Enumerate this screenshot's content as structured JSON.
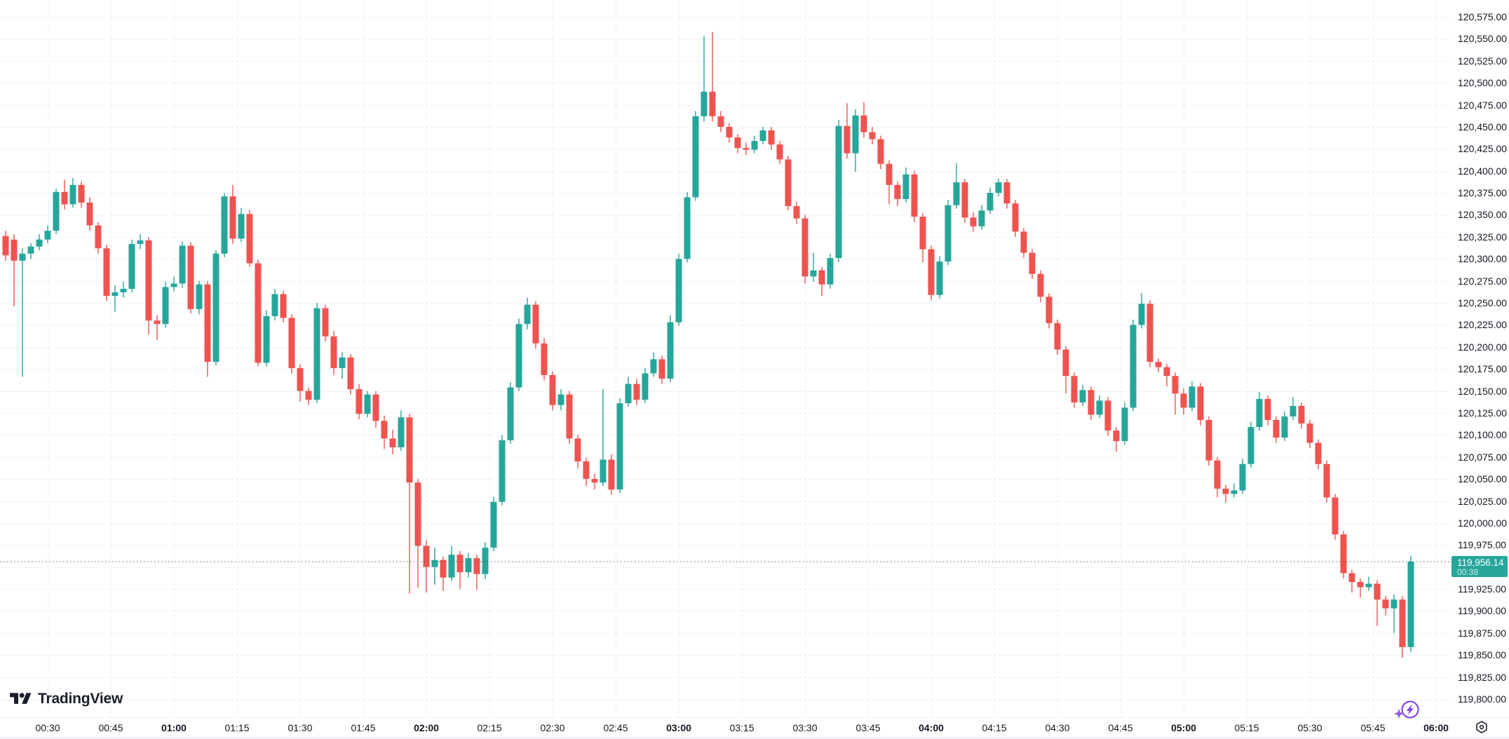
{
  "watermark": {
    "brand": "TradingView"
  },
  "chart_data": {
    "type": "candlestick",
    "title": "",
    "interval_minutes": 2,
    "first_candle_time": "00:20",
    "legend_position": "none",
    "grid": true,
    "last_price": 119956.14,
    "last_price_label": "119,956.14",
    "countdown": "00:38",
    "price_line": {
      "price": 119956.14,
      "style": "dotted"
    },
    "colors": {
      "up": "#26a69a",
      "down": "#ef5350",
      "grid": "#f0f3fa",
      "text": "#131722",
      "price_line": "#4f5966",
      "badge_text": "#ffffff",
      "logo": "#1a1e29",
      "boost_purple": "#7c3aed",
      "sparkle_purple": "#8b5cf6",
      "gear": "#2a2e39"
    },
    "y_axis": {
      "min": 119800,
      "max": 120575,
      "step": 25,
      "labels": [
        "120,575.00",
        "120,550.00",
        "120,525.00",
        "120,500.00",
        "120,475.00",
        "120,450.00",
        "120,425.00",
        "120,400.00",
        "120,375.00",
        "120,350.00",
        "120,325.00",
        "120,300.00",
        "120,275.00",
        "120,250.00",
        "120,225.00",
        "120,200.00",
        "120,175.00",
        "120,150.00",
        "120,125.00",
        "120,100.00",
        "120,075.00",
        "120,050.00",
        "120,025.00",
        "120,000.00",
        "119,975.00",
        "119,950.00",
        "119,925.00",
        "119,900.00",
        "119,875.00",
        "119,850.00",
        "119,825.00",
        "119,800.00"
      ]
    },
    "x_axis": {
      "ticks": [
        {
          "label": "00:30",
          "minutes": 30,
          "bold": false
        },
        {
          "label": "00:45",
          "minutes": 45,
          "bold": false
        },
        {
          "label": "01:00",
          "minutes": 60,
          "bold": true
        },
        {
          "label": "01:15",
          "minutes": 75,
          "bold": false
        },
        {
          "label": "01:30",
          "minutes": 90,
          "bold": false
        },
        {
          "label": "01:45",
          "minutes": 105,
          "bold": false
        },
        {
          "label": "02:00",
          "minutes": 120,
          "bold": true
        },
        {
          "label": "02:15",
          "minutes": 135,
          "bold": false
        },
        {
          "label": "02:30",
          "minutes": 150,
          "bold": false
        },
        {
          "label": "02:45",
          "minutes": 165,
          "bold": false
        },
        {
          "label": "03:00",
          "minutes": 180,
          "bold": true
        },
        {
          "label": "03:15",
          "minutes": 195,
          "bold": false
        },
        {
          "label": "03:30",
          "minutes": 210,
          "bold": false
        },
        {
          "label": "03:45",
          "minutes": 225,
          "bold": false
        },
        {
          "label": "04:00",
          "minutes": 240,
          "bold": true
        },
        {
          "label": "04:15",
          "minutes": 255,
          "bold": false
        },
        {
          "label": "04:30",
          "minutes": 270,
          "bold": false
        },
        {
          "label": "04:45",
          "minutes": 285,
          "bold": false
        },
        {
          "label": "05:00",
          "minutes": 300,
          "bold": true
        },
        {
          "label": "05:15",
          "minutes": 315,
          "bold": false
        },
        {
          "label": "05:30",
          "minutes": 330,
          "bold": false
        },
        {
          "label": "05:45",
          "minutes": 345,
          "bold": false
        },
        {
          "label": "06:00",
          "minutes": 360,
          "bold": true
        }
      ]
    },
    "candles": [
      [
        120326,
        120332,
        120298,
        120304
      ],
      [
        120322,
        120328,
        120246,
        120298
      ],
      [
        120298,
        120312,
        120166,
        120306
      ],
      [
        120306,
        120318,
        120300,
        120314
      ],
      [
        120314,
        120328,
        120310,
        120322
      ],
      [
        120322,
        120338,
        120318,
        120332
      ],
      [
        120332,
        120380,
        120328,
        120376
      ],
      [
        120376,
        120390,
        120356,
        120362
      ],
      [
        120362,
        120392,
        120358,
        120384
      ],
      [
        120384,
        120388,
        120358,
        120364
      ],
      [
        120364,
        120370,
        120332,
        120338
      ],
      [
        120338,
        120342,
        120306,
        120312
      ],
      [
        120312,
        120316,
        120252,
        120258
      ],
      [
        120258,
        120270,
        120240,
        120262
      ],
      [
        120262,
        120274,
        120256,
        120266
      ],
      [
        120266,
        120322,
        120262,
        120317
      ],
      [
        120317,
        120328,
        120311,
        120321
      ],
      [
        120321,
        120325,
        120214,
        120230
      ],
      [
        120230,
        120236,
        120208,
        120226
      ],
      [
        120226,
        120274,
        120222,
        120268
      ],
      [
        120268,
        120280,
        120263,
        120272
      ],
      [
        120272,
        120320,
        120267,
        120315
      ],
      [
        120315,
        120319,
        120238,
        120243
      ],
      [
        120243,
        120275,
        120237,
        120271
      ],
      [
        120271,
        120275,
        120166,
        120183
      ],
      [
        120183,
        120310,
        120179,
        120306
      ],
      [
        120306,
        120375,
        120302,
        120371
      ],
      [
        120371,
        120384,
        120317,
        120323
      ],
      [
        120323,
        120358,
        120319,
        120351
      ],
      [
        120351,
        120356,
        120291,
        120295
      ],
      [
        120295,
        120299,
        120178,
        120182
      ],
      [
        120182,
        120242,
        120178,
        120235
      ],
      [
        120235,
        120266,
        120230,
        120260
      ],
      [
        120260,
        120264,
        120228,
        120233
      ],
      [
        120233,
        120237,
        120170,
        120176
      ],
      [
        120176,
        120180,
        120138,
        120150
      ],
      [
        120150,
        120154,
        120134,
        120140
      ],
      [
        120140,
        120250,
        120136,
        120244
      ],
      [
        120244,
        120248,
        120206,
        120212
      ],
      [
        120212,
        120218,
        120168,
        120176
      ],
      [
        120176,
        120194,
        120164,
        120188
      ],
      [
        120188,
        120192,
        120146,
        120152
      ],
      [
        120152,
        120158,
        120118,
        120124
      ],
      [
        120124,
        120150,
        120120,
        120146
      ],
      [
        120146,
        120150,
        120108,
        120116
      ],
      [
        120116,
        120122,
        120084,
        120096
      ],
      [
        120096,
        120106,
        120078,
        120086
      ],
      [
        120086,
        120128,
        120082,
        120120
      ],
      [
        120120,
        120124,
        119920,
        120046
      ],
      [
        120046,
        120050,
        119926,
        119974
      ],
      [
        119974,
        119980,
        119921,
        119950
      ],
      [
        119950,
        119972,
        119930,
        119958
      ],
      [
        119958,
        119962,
        119923,
        119938
      ],
      [
        119938,
        119974,
        119934,
        119964
      ],
      [
        119964,
        119968,
        119925,
        119944
      ],
      [
        119944,
        119966,
        119938,
        119960
      ],
      [
        119960,
        119964,
        119924,
        119942
      ],
      [
        119942,
        119978,
        119936,
        119972
      ],
      [
        119972,
        120030,
        119968,
        120024
      ],
      [
        120024,
        120100,
        120020,
        120094
      ],
      [
        120094,
        120160,
        120090,
        120154
      ],
      [
        120154,
        120232,
        120150,
        120226
      ],
      [
        120226,
        120256,
        120220,
        120248
      ],
      [
        120248,
        120252,
        120198,
        120204
      ],
      [
        120204,
        120210,
        120162,
        120168
      ],
      [
        120168,
        120172,
        120128,
        120134
      ],
      [
        120134,
        120152,
        120128,
        120146
      ],
      [
        120146,
        120150,
        120090,
        120096
      ],
      [
        120096,
        120100,
        120062,
        120070
      ],
      [
        120070,
        120074,
        120042,
        120050
      ],
      [
        120050,
        120056,
        120038,
        120046
      ],
      [
        120046,
        120152,
        120042,
        120072
      ],
      [
        120072,
        120078,
        120032,
        120038
      ],
      [
        120038,
        120142,
        120034,
        120136
      ],
      [
        120136,
        120166,
        120132,
        120158
      ],
      [
        120158,
        120164,
        120134,
        120140
      ],
      [
        120140,
        120176,
        120136,
        120170
      ],
      [
        120170,
        120194,
        120166,
        120186
      ],
      [
        120186,
        120190,
        120158,
        120164
      ],
      [
        120164,
        120236,
        120160,
        120228
      ],
      [
        120228,
        120306,
        120224,
        120300
      ],
      [
        120300,
        120376,
        120296,
        120370
      ],
      [
        120370,
        120468,
        120366,
        120462
      ],
      [
        120462,
        120553,
        120456,
        120490
      ],
      [
        120490,
        120558,
        120456,
        120462
      ],
      [
        120462,
        120468,
        120444,
        120450
      ],
      [
        120450,
        120454,
        120432,
        120438
      ],
      [
        120438,
        120442,
        120420,
        120426
      ],
      [
        120426,
        120432,
        120418,
        120424
      ],
      [
        120424,
        120440,
        120420,
        120434
      ],
      [
        120434,
        120450,
        120430,
        120446
      ],
      [
        120446,
        120450,
        120424,
        120430
      ],
      [
        120430,
        120434,
        120408,
        120413
      ],
      [
        120413,
        120417,
        120355,
        120360
      ],
      [
        120360,
        120365,
        120340,
        120346
      ],
      [
        120346,
        120350,
        120272,
        120280
      ],
      [
        120280,
        120307,
        120274,
        120287
      ],
      [
        120287,
        120291,
        120258,
        120271
      ],
      [
        120271,
        120306,
        120266,
        120301
      ],
      [
        120301,
        120458,
        120296,
        120451
      ],
      [
        120451,
        120477,
        120414,
        120420
      ],
      [
        120420,
        120470,
        120399,
        120463
      ],
      [
        120463,
        120478,
        120438,
        120444
      ],
      [
        120444,
        120450,
        120430,
        120436
      ],
      [
        120436,
        120440,
        120402,
        120408
      ],
      [
        120408,
        120412,
        120362,
        120384
      ],
      [
        120384,
        120388,
        120360,
        120368
      ],
      [
        120368,
        120404,
        120364,
        120396
      ],
      [
        120396,
        120400,
        120342,
        120348
      ],
      [
        120348,
        120352,
        120296,
        120311
      ],
      [
        120311,
        120315,
        120253,
        120259
      ],
      [
        120259,
        120303,
        120255,
        120297
      ],
      [
        120297,
        120367,
        120293,
        120361
      ],
      [
        120361,
        120409,
        120357,
        120387
      ],
      [
        120387,
        120391,
        120341,
        120347
      ],
      [
        120347,
        120353,
        120331,
        120337
      ],
      [
        120337,
        120361,
        120333,
        120355
      ],
      [
        120355,
        120381,
        120351,
        120375
      ],
      [
        120375,
        120391,
        120371,
        120387
      ],
      [
        120387,
        120391,
        120357,
        120363
      ],
      [
        120363,
        120367,
        120325,
        120331
      ],
      [
        120331,
        120335,
        120301,
        120307
      ],
      [
        120307,
        120311,
        120277,
        120283
      ],
      [
        120283,
        120287,
        120251,
        120257
      ],
      [
        120257,
        120261,
        120221,
        120227
      ],
      [
        120227,
        120231,
        120191,
        120197
      ],
      [
        120197,
        120201,
        120147,
        120167
      ],
      [
        120167,
        120171,
        120131,
        120137
      ],
      [
        120137,
        120157,
        120133,
        120151
      ],
      [
        120151,
        120155,
        120117,
        120123
      ],
      [
        120123,
        120145,
        120119,
        120139
      ],
      [
        120139,
        120143,
        120099,
        120105
      ],
      [
        120105,
        120109,
        120081,
        120093
      ],
      [
        120093,
        120137,
        120089,
        120131
      ],
      [
        120131,
        120231,
        120127,
        120225
      ],
      [
        120225,
        120261,
        120221,
        120249
      ],
      [
        120249,
        120253,
        120177,
        120183
      ],
      [
        120183,
        120187,
        120171,
        120177
      ],
      [
        120177,
        120181,
        120155,
        120167
      ],
      [
        120167,
        120171,
        120123,
        120147
      ],
      [
        120147,
        120153,
        120123,
        120131
      ],
      [
        120131,
        120161,
        120127,
        120155
      ],
      [
        120155,
        120159,
        120111,
        120117
      ],
      [
        120117,
        120121,
        120065,
        120071
      ],
      [
        120071,
        120075,
        120029,
        120039
      ],
      [
        120039,
        120043,
        120023,
        120033
      ],
      [
        120033,
        120045,
        120029,
        120037
      ],
      [
        120037,
        120073,
        120033,
        120067
      ],
      [
        120067,
        120115,
        120063,
        120109
      ],
      [
        120109,
        120149,
        120105,
        120141
      ],
      [
        120141,
        120145,
        120111,
        120117
      ],
      [
        120117,
        120121,
        120091,
        120097
      ],
      [
        120097,
        120127,
        120093,
        120121
      ],
      [
        120121,
        120143,
        120117,
        120133
      ],
      [
        120133,
        120137,
        120107,
        120113
      ],
      [
        120113,
        120117,
        120085,
        120091
      ],
      [
        120091,
        120095,
        120061,
        120067
      ],
      [
        120067,
        120071,
        120023,
        120029
      ],
      [
        120029,
        120033,
        119981,
        119987
      ],
      [
        119987,
        119991,
        119937,
        119943
      ],
      [
        119943,
        119947,
        119921,
        119933
      ],
      [
        119933,
        119937,
        119915,
        119927
      ],
      [
        119927,
        119939,
        119923,
        119931
      ],
      [
        119931,
        119935,
        119883,
        119913
      ],
      [
        119913,
        119917,
        119895,
        119903
      ],
      [
        119903,
        119919,
        119875,
        119913
      ],
      [
        119913,
        119917,
        119847,
        119859
      ],
      [
        119859,
        119963,
        119854,
        119956.14
      ]
    ]
  },
  "icons": {
    "bottom_right": [
      "boost-lightning-icon",
      "axis-settings-gear-icon"
    ],
    "logo_mark": "tradingview-mark-icon"
  }
}
